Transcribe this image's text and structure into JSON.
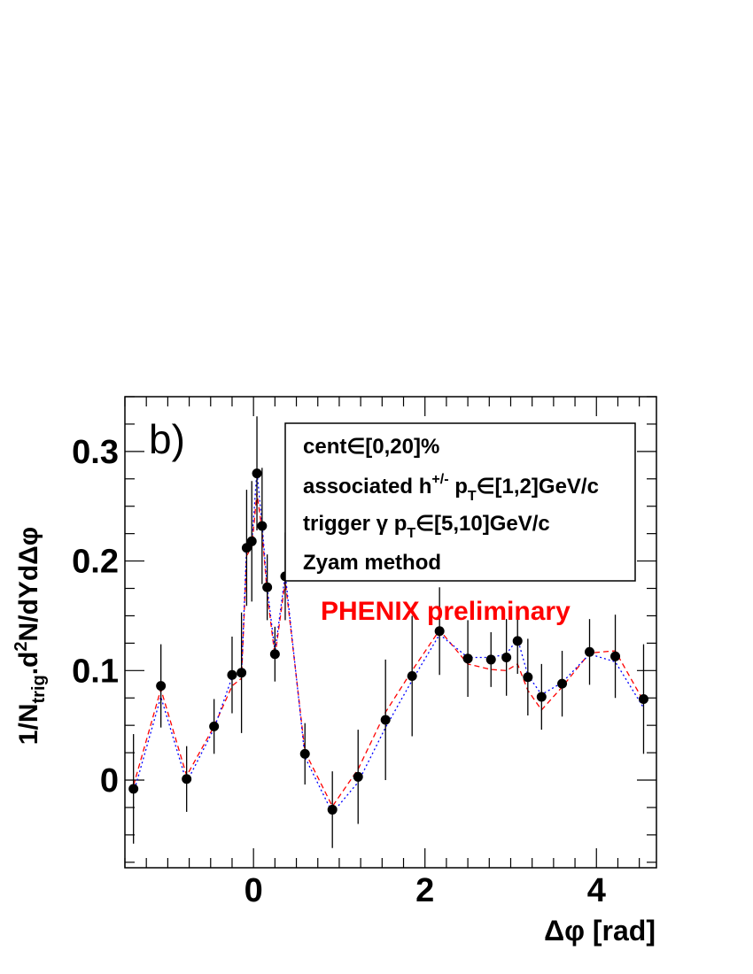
{
  "chart_data": {
    "type": "scatter",
    "panel_label": "b)",
    "xlabel": "Δφ [rad]",
    "ylabel": {
      "prefix": "1/N",
      "sub": "trig",
      "mid": ".d",
      "sup": "2",
      "suffix": "N/dYdΔφ"
    },
    "xlim": [
      -1.5,
      4.7
    ],
    "ylim": [
      -0.08,
      0.35
    ],
    "x_ticks": [
      0,
      2,
      4
    ],
    "x_tick_labels": [
      "0",
      "2",
      "4"
    ],
    "y_ticks": [
      0,
      0.1,
      0.2,
      0.3
    ],
    "y_tick_labels": [
      "0",
      "0.1",
      "0.2",
      "0.3"
    ],
    "grid": false,
    "legend": {
      "placement": "top-right",
      "lines": [
        "cent∈[0,20]%",
        {
          "pre": "associated h",
          "sup": "+/-",
          "mid": " p",
          "sub": "T",
          "post": "∈[1,2]GeV/c"
        },
        {
          "pre": "trigger γ p",
          "sub": "T",
          "post": "∈[5,10]GeV/c"
        },
        "Zyam method"
      ]
    },
    "watermark": "PHENIX preliminary",
    "colors": {
      "points": "#000000",
      "error_bars": "#000000",
      "dashed_curve": "#ff0000",
      "dotted_curve": "#0000ff",
      "watermark": "#ff0000"
    },
    "series": [
      {
        "points": [
          {
            "x": -1.4,
            "y": -0.008,
            "err": 0.05
          },
          {
            "x": -1.08,
            "y": 0.086,
            "err": 0.038
          },
          {
            "x": -0.78,
            "y": 0.001,
            "err": 0.03
          },
          {
            "x": -0.46,
            "y": 0.049,
            "err": 0.025
          },
          {
            "x": -0.25,
            "y": 0.096,
            "err": 0.035
          },
          {
            "x": -0.14,
            "y": 0.098,
            "err": 0.055
          },
          {
            "x": -0.08,
            "y": 0.212,
            "err": 0.053
          },
          {
            "x": -0.02,
            "y": 0.218,
            "err": 0.055
          },
          {
            "x": 0.04,
            "y": 0.28,
            "err": 0.052
          },
          {
            "x": 0.1,
            "y": 0.232,
            "err": 0.053
          },
          {
            "x": 0.16,
            "y": 0.176,
            "err": 0.03
          },
          {
            "x": 0.25,
            "y": 0.115,
            "err": 0.025
          },
          {
            "x": 0.37,
            "y": 0.186,
            "err": 0.04
          },
          {
            "x": 0.6,
            "y": 0.024,
            "err": 0.028
          },
          {
            "x": 0.92,
            "y": -0.027,
            "err": 0.035
          },
          {
            "x": 1.22,
            "y": 0.003,
            "err": 0.043
          },
          {
            "x": 1.54,
            "y": 0.055,
            "err": 0.055
          },
          {
            "x": 1.85,
            "y": 0.095,
            "err": 0.055
          },
          {
            "x": 2.17,
            "y": 0.136,
            "err": 0.04
          },
          {
            "x": 2.5,
            "y": 0.111,
            "err": 0.035
          },
          {
            "x": 2.77,
            "y": 0.11,
            "err": 0.025
          },
          {
            "x": 2.95,
            "y": 0.112,
            "err": 0.035
          },
          {
            "x": 3.08,
            "y": 0.127,
            "err": 0.03
          },
          {
            "x": 3.2,
            "y": 0.094,
            "err": 0.035
          },
          {
            "x": 3.36,
            "y": 0.076,
            "err": 0.03
          },
          {
            "x": 3.6,
            "y": 0.088,
            "err": 0.03
          },
          {
            "x": 3.92,
            "y": 0.117,
            "err": 0.03
          },
          {
            "x": 4.22,
            "y": 0.113,
            "err": 0.038
          },
          {
            "x": 4.55,
            "y": 0.074,
            "err": 0.05
          }
        ]
      },
      {
        "style": "dashed",
        "color": "#ff0000",
        "x": [
          -1.4,
          -1.08,
          -0.78,
          -0.46,
          -0.25,
          -0.14,
          -0.08,
          -0.02,
          0.04,
          0.1,
          0.16,
          0.25,
          0.37,
          0.6,
          0.92,
          1.22,
          1.54,
          1.85,
          2.17,
          2.5,
          2.77,
          2.95,
          3.08,
          3.2,
          3.36,
          3.6,
          3.92,
          4.22,
          4.55
        ],
        "y": [
          -0.005,
          0.083,
          0.004,
          0.049,
          0.086,
          0.093,
          0.205,
          0.212,
          0.262,
          0.228,
          0.17,
          0.113,
          0.182,
          0.026,
          -0.024,
          0.01,
          0.062,
          0.1,
          0.137,
          0.106,
          0.101,
          0.1,
          0.106,
          0.082,
          0.064,
          0.085,
          0.116,
          0.118,
          0.072
        ]
      },
      {
        "style": "dotted",
        "color": "#0000ff",
        "x": [
          -1.4,
          -1.08,
          -0.78,
          -0.46,
          -0.25,
          -0.14,
          -0.08,
          -0.02,
          0.04,
          0.1,
          0.16,
          0.25,
          0.37,
          0.6,
          0.92,
          1.22,
          1.54,
          1.85,
          2.17,
          2.5,
          2.77,
          2.95,
          3.08,
          3.2,
          3.36,
          3.6,
          3.92,
          4.22,
          4.55
        ],
        "y": [
          -0.012,
          0.076,
          -0.002,
          0.047,
          0.094,
          0.097,
          0.213,
          0.216,
          0.282,
          0.234,
          0.176,
          0.117,
          0.188,
          0.021,
          -0.03,
          -0.002,
          0.048,
          0.091,
          0.133,
          0.112,
          0.112,
          0.115,
          0.129,
          0.096,
          0.078,
          0.089,
          0.115,
          0.108,
          0.066
        ]
      }
    ]
  }
}
